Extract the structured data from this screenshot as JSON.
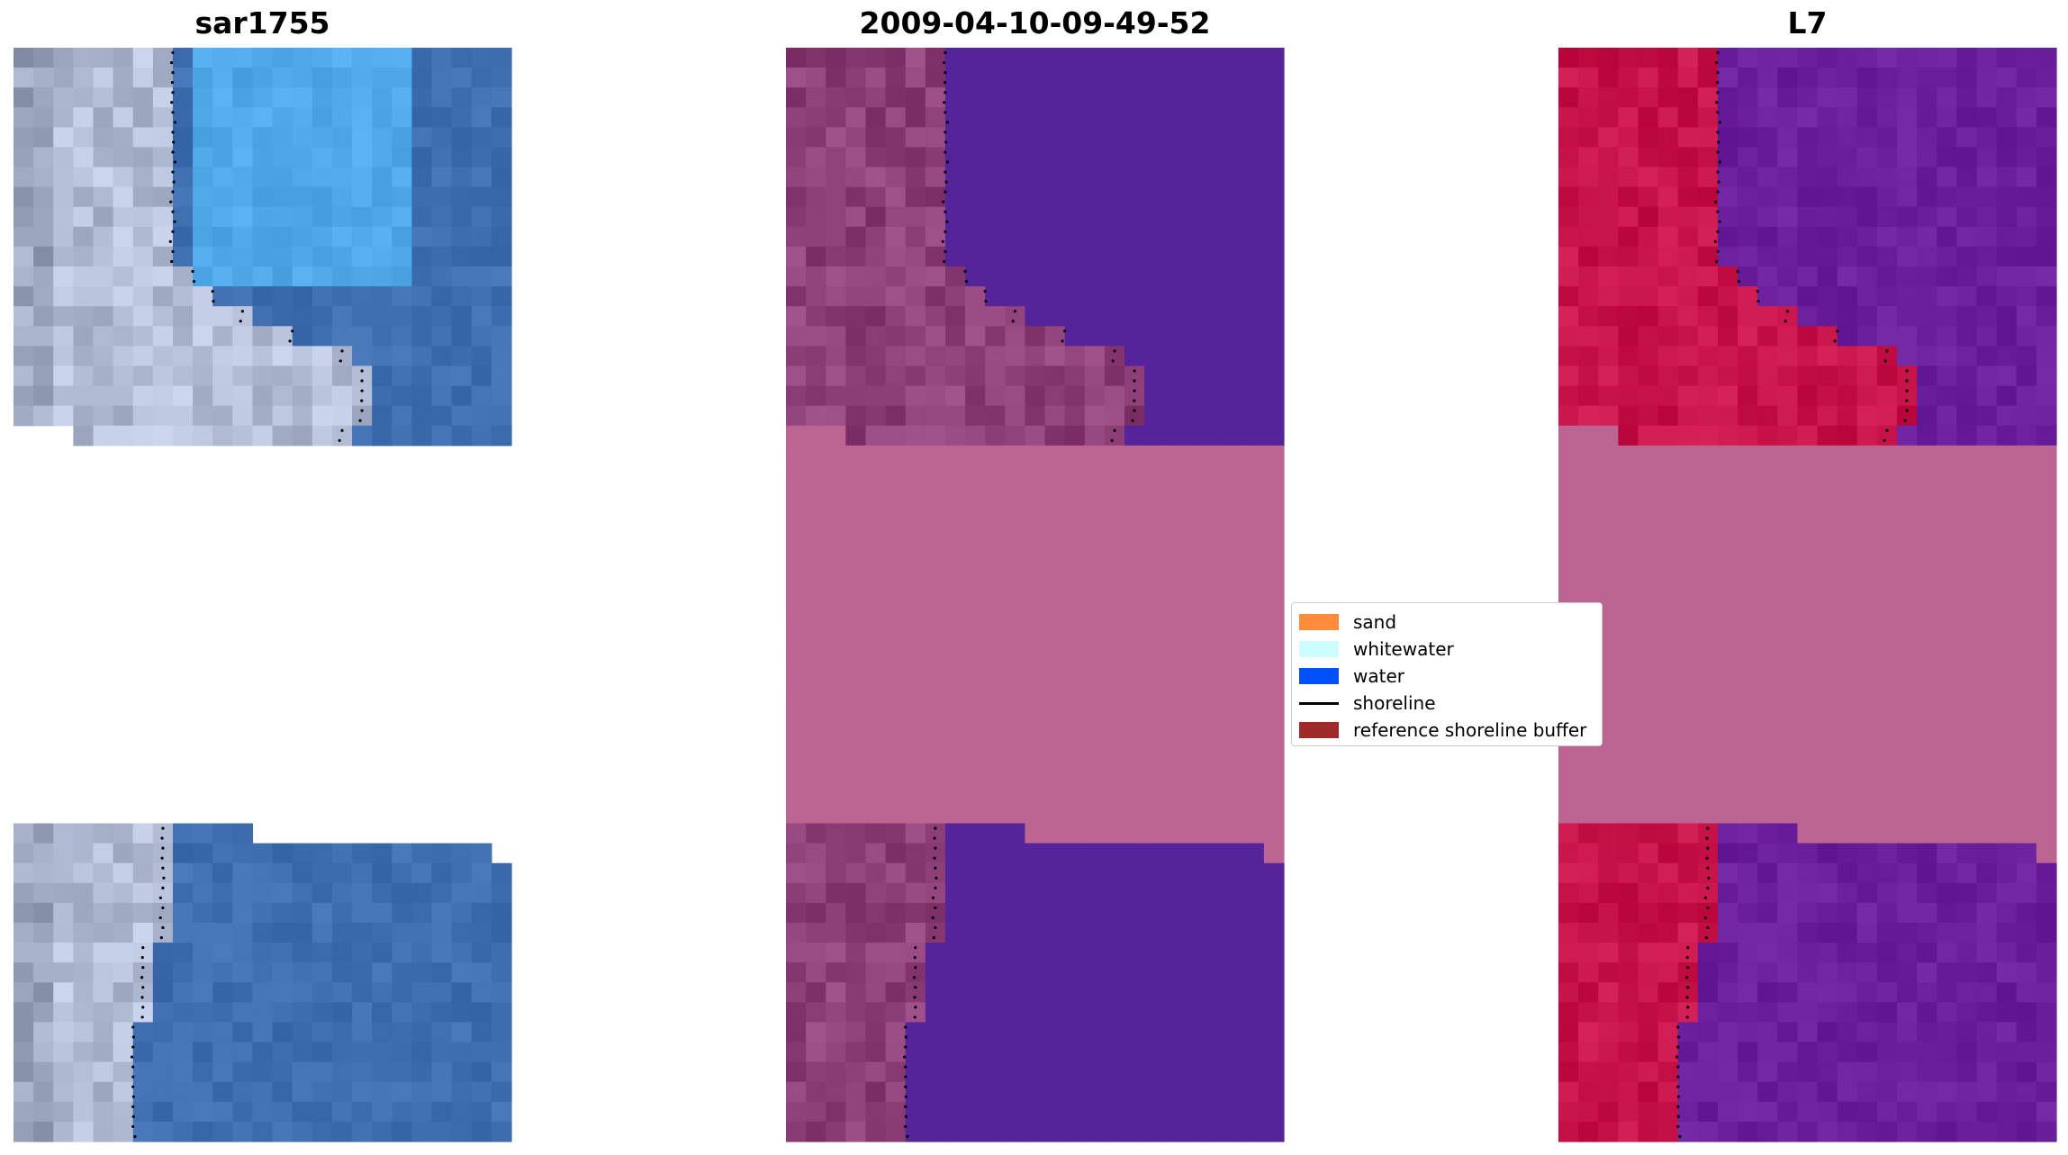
{
  "panels": [
    {
      "title": "sar1755"
    },
    {
      "title": "2009-04-10-09-49-52"
    },
    {
      "title": "L7"
    }
  ],
  "legend": {
    "items": [
      {
        "label": "sand",
        "color": "#ff8c3a",
        "kind": "patch"
      },
      {
        "label": "whitewater",
        "color": "#ccfdff",
        "kind": "patch"
      },
      {
        "label": "water",
        "color": "#0050ff",
        "kind": "patch"
      },
      {
        "label": "shoreline",
        "color": "#000000",
        "kind": "line"
      },
      {
        "label": "reference shoreline buffer",
        "color": "#9e2a2a",
        "kind": "patch"
      }
    ]
  },
  "colors": {
    "rgb_land": "#b4bdd6",
    "rgb_water": "#3f6fb0",
    "rgb_water_light": "#4fa8e8",
    "class_background": "#8e3f78",
    "class_water": "#55239a",
    "class_nodata": "#bd6592",
    "mndwi_land": "#c8124a",
    "mndwi_water": "#6a1f9c",
    "mndwi_nodata": "#bd6592"
  }
}
